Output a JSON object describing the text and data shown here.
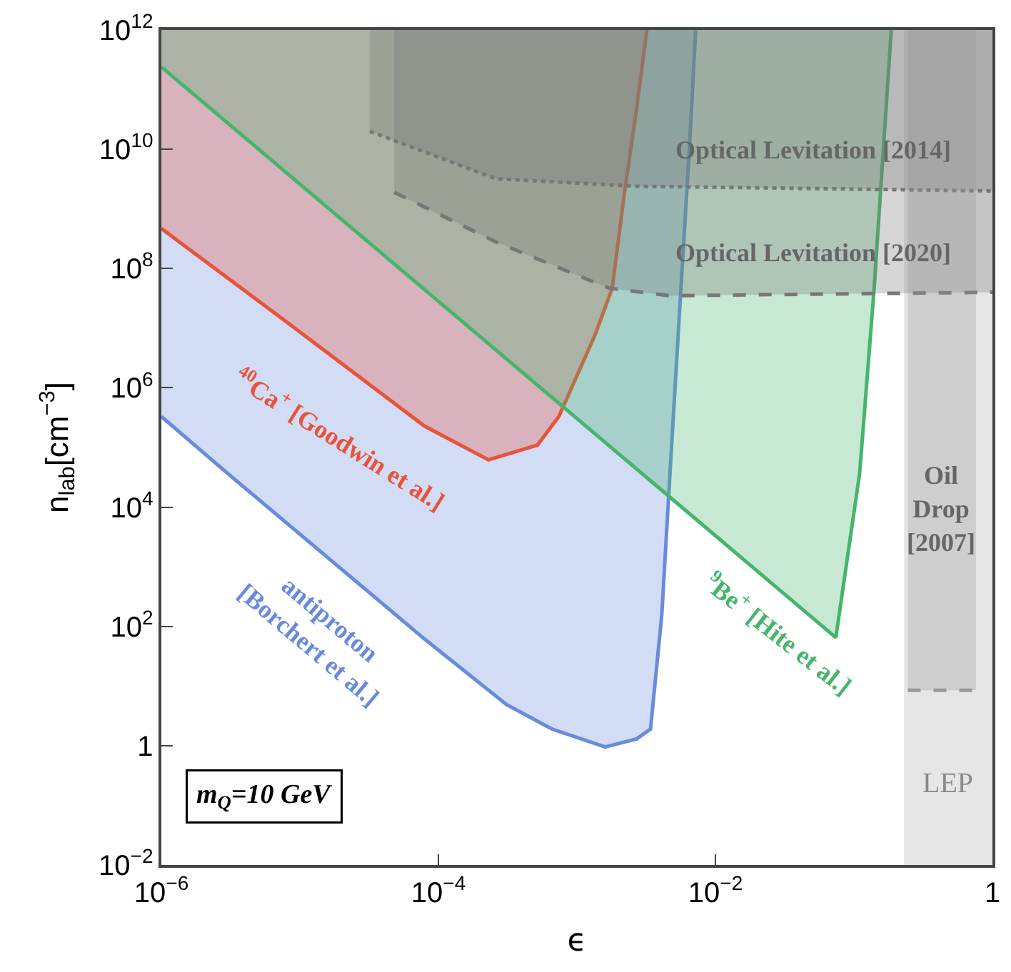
{
  "chart_data": {
    "type": "area",
    "xlabel": "ϵ",
    "ylabel": "n$_{lab}$[cm$^{−3}$]",
    "log": "xy",
    "grid": false,
    "xlim": [
      1e-06,
      1
    ],
    "ylim": [
      0.01,
      1000000000000.0
    ],
    "xticks": [
      {
        "value": 1e-06,
        "label": "10$^{−6}$"
      },
      {
        "value": 0.0001,
        "label": "10$^{−4}$"
      },
      {
        "value": 0.01,
        "label": "10$^{−2}$"
      },
      1
    ],
    "yticks": [
      {
        "value": 0.01,
        "label": "10$^{−2}$"
      },
      1,
      {
        "value": 100,
        "label": "10$^{2}$"
      },
      {
        "value": 10000.0,
        "label": "10$^{4}$"
      },
      {
        "value": 1000000.0,
        "label": "10$^{6}$"
      },
      {
        "value": 100000000.0,
        "label": "10$^{8}$"
      },
      {
        "value": 10000000000.0,
        "label": "10$^{10}$"
      },
      {
        "value": 1000000000000.0,
        "label": "10$^{12}$"
      }
    ],
    "series": [
      {
        "color": "#6a8bdc",
        "x": [
          1e-06,
          1e-06,
          3e-06,
          7.9e-05,
          0.00031,
          0.00066,
          0.0016,
          0.0027,
          0.0034,
          0.0041,
          0.0047,
          0.0055,
          0.0065,
          0.0072
        ],
        "values": [
          1000000000000.0,
          330000.0,
          37000.0,
          62,
          4.9,
          1.9,
          0.95,
          1.3,
          1.9,
          155,
          37000.0,
          18000000.0,
          11000000000.0,
          1000000000000.0
        ],
        "line_style": "solid"
      },
      {
        "color": "#e8533a",
        "x": [
          1e-06,
          1e-06,
          7.6e-06,
          7.9e-05,
          0.00023,
          0.00052,
          0.00074,
          0.00135,
          0.0018,
          0.0022,
          0.0027,
          0.0032
        ],
        "values": [
          1000000000000.0,
          470000000.0,
          14000000.0,
          230000.0,
          62000.0,
          110000.0,
          330000.0,
          7600000.0,
          47000000.0,
          1800000000.0,
          49000000000.0,
          1000000000000.0
        ],
        "line_style": "solid"
      },
      {
        "color": "#46b56c",
        "x": [
          1e-06,
          1e-06,
          0.074,
          0.11,
          0.14,
          0.186
        ],
        "values": [
          1000000000000.0,
          240000000000.0,
          65,
          37000.0,
          47000000.0,
          1000000000000.0
        ],
        "line_style": "solid"
      },
      {
        "color": "#777777",
        "x": [
          3.2e-05,
          3.2e-05,
          0.00026,
          0.0027,
          1,
          1
        ],
        "values": [
          1000000000000.0,
          20000000000.0,
          3200000000.0,
          2400000000.0,
          2000000000.0,
          1000000000000.0
        ],
        "line_style": "dotted"
      },
      {
        "color": "#777777",
        "x": [
          4.8e-05,
          4.8e-05,
          0.00026,
          0.0017,
          0.0047,
          1,
          1
        ],
        "values": [
          1000000000000.0,
          1900000000.0,
          280000000.0,
          47000000.0,
          35000000.0,
          40000000.0,
          1000000000000.0
        ],
        "line_style": "dashed"
      },
      {
        "color": "#999999",
        "x": [
          0.245,
          0.245,
          0.76,
          0.76
        ],
        "values": [
          1000000000000.0,
          8.5,
          8.5,
          1000000000000.0
        ],
        "line_style": "dashed"
      }
    ],
    "bands": [
      {
        "axis": "x",
        "from": 0.23,
        "to": 1,
        "label": "LEP",
        "color": "#e6e6e6"
      }
    ],
    "annotations": [
      "$^{40}$Ca$^{+}$ [Goodwin et al.]",
      "antiproton\n[Borchert et al.]",
      "$^{9}$Be$^{+}$ [Hite et al.]",
      "Optical Levitation [2014]",
      "Optical Levitation [2020]",
      "Oil\nDrop\n[2007]",
      "m$_{Q}$=10 GeV"
    ]
  }
}
